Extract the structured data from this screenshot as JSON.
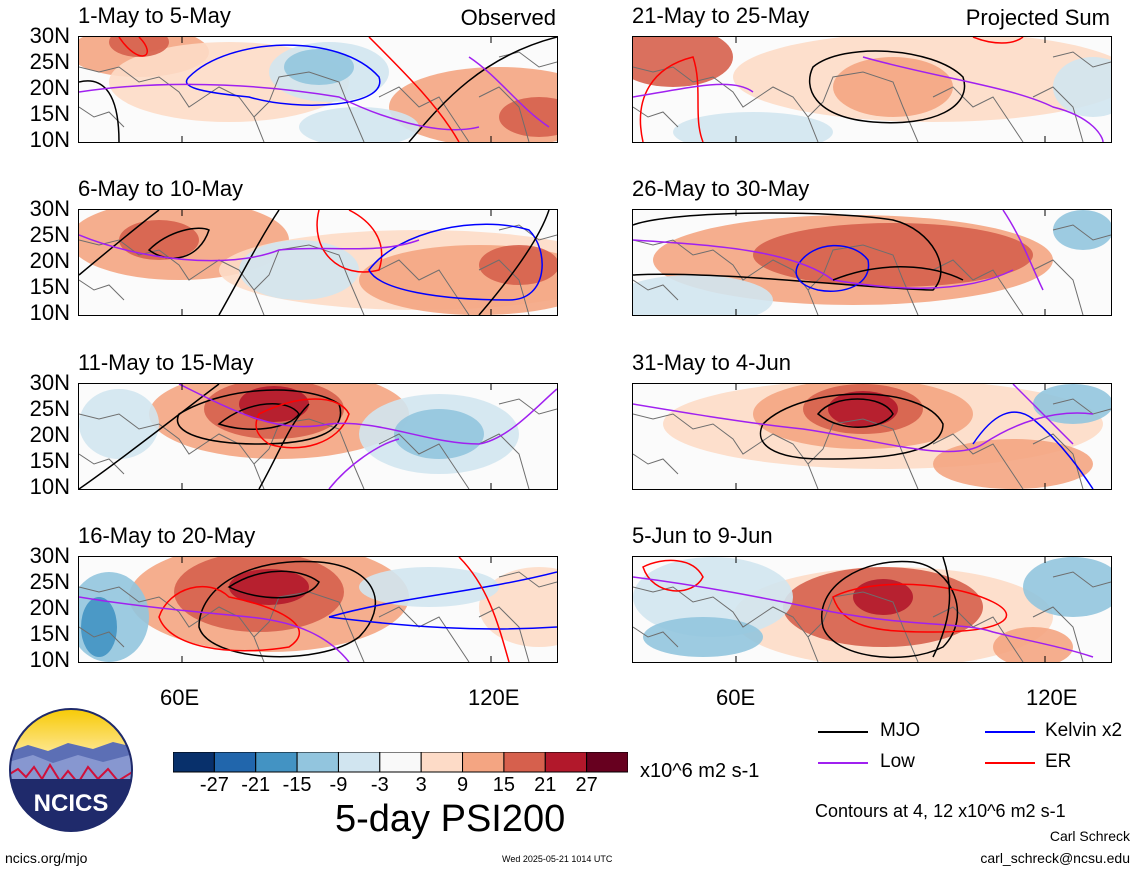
{
  "panels": [
    {
      "title": "1-May to 5-May",
      "tag": "Observed"
    },
    {
      "title": "21-May to 25-May",
      "tag": "Projected Sum"
    },
    {
      "title": "6-May to 10-May",
      "tag": ""
    },
    {
      "title": "26-May to 30-May",
      "tag": ""
    },
    {
      "title": "11-May to 15-May",
      "tag": ""
    },
    {
      "title": "31-May to 4-Jun",
      "tag": ""
    },
    {
      "title": "16-May to 20-May",
      "tag": ""
    },
    {
      "title": "5-Jun to 9-Jun",
      "tag": ""
    }
  ],
  "lat_labels": [
    "30N",
    "25N",
    "20N",
    "15N",
    "10N"
  ],
  "lon_labels": [
    "60E",
    "120E"
  ],
  "colorbar": {
    "labels": [
      "-27",
      "-21",
      "-15",
      "-9",
      "-3",
      "3",
      "9",
      "15",
      "21",
      "27"
    ],
    "colors": [
      "#08306b",
      "#2166ac",
      "#4393c3",
      "#92c5de",
      "#d1e5f0",
      "#f9f9f9",
      "#fddbc7",
      "#f4a582",
      "#d6604d",
      "#b2182b",
      "#67001f"
    ],
    "units": "x10^6 m2 s-1"
  },
  "title": "5-day PSI200",
  "legend": [
    {
      "label": "MJO",
      "color": "#000000"
    },
    {
      "label": "Kelvin x2",
      "color": "#0000ff"
    },
    {
      "label": "Low",
      "color": "#a020f0"
    },
    {
      "label": "ER",
      "color": "#ff0000"
    }
  ],
  "contour_note": "Contours at 4, 12 x10^6 m2 s-1",
  "author": "Carl Schreck",
  "email": "carl_schreck@ncsu.edu",
  "site": "ncics.org/mjo",
  "timestamp": "Wed 2025-05-21 1014 UTC",
  "logo_text": "NCICS"
}
